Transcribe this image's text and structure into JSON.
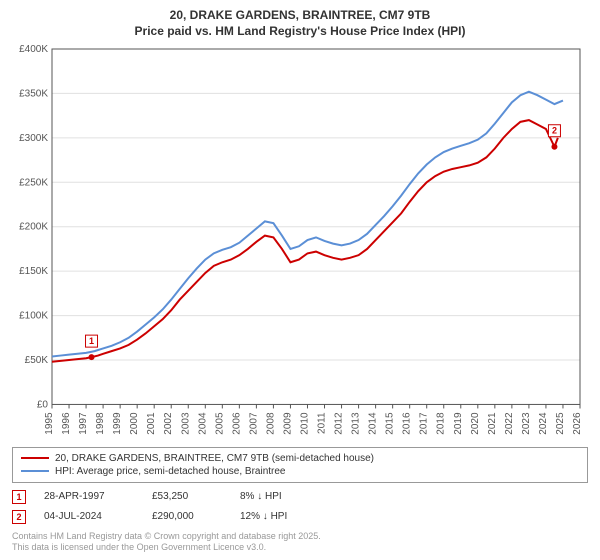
{
  "title": {
    "line1": "20, DRAKE GARDENS, BRAINTREE, CM7 9TB",
    "line2": "Price paid vs. HM Land Registry's House Price Index (HPI)",
    "fontsize": 12,
    "color": "#333333"
  },
  "chart": {
    "type": "line",
    "background_color": "#ffffff",
    "grid_color": "#e0e0e0",
    "axis_color": "#555555",
    "label_fontsize": 10,
    "x": {
      "min": 1995,
      "max": 2026,
      "ticks": [
        1995,
        1996,
        1997,
        1998,
        1999,
        2000,
        2001,
        2002,
        2003,
        2004,
        2005,
        2006,
        2007,
        2008,
        2009,
        2010,
        2011,
        2012,
        2013,
        2014,
        2015,
        2016,
        2017,
        2018,
        2019,
        2020,
        2021,
        2022,
        2023,
        2024,
        2025,
        2026
      ],
      "tick_rotation": -90
    },
    "y": {
      "min": 0,
      "max": 400000,
      "ticks": [
        0,
        50000,
        100000,
        150000,
        200000,
        250000,
        300000,
        350000,
        400000
      ],
      "tick_labels": [
        "£0",
        "£50K",
        "£100K",
        "£150K",
        "£200K",
        "£250K",
        "£300K",
        "£350K",
        "£400K"
      ]
    },
    "series": [
      {
        "id": "price_paid",
        "label": "20, DRAKE GARDENS, BRAINTREE, CM7 9TB (semi-detached house)",
        "color": "#cc0000",
        "line_width": 2,
        "points": [
          [
            1995.0,
            48000
          ],
          [
            1995.5,
            49000
          ],
          [
            1996.0,
            50000
          ],
          [
            1996.5,
            51000
          ],
          [
            1997.0,
            52000
          ],
          [
            1997.32,
            53250
          ],
          [
            1997.7,
            55000
          ],
          [
            1998.0,
            57000
          ],
          [
            1998.5,
            60000
          ],
          [
            1999.0,
            63000
          ],
          [
            1999.5,
            67000
          ],
          [
            2000.0,
            73000
          ],
          [
            2000.5,
            80000
          ],
          [
            2001.0,
            88000
          ],
          [
            2001.5,
            96000
          ],
          [
            2002.0,
            106000
          ],
          [
            2002.5,
            118000
          ],
          [
            2003.0,
            128000
          ],
          [
            2003.5,
            138000
          ],
          [
            2004.0,
            148000
          ],
          [
            2004.5,
            156000
          ],
          [
            2005.0,
            160000
          ],
          [
            2005.5,
            163000
          ],
          [
            2006.0,
            168000
          ],
          [
            2006.5,
            175000
          ],
          [
            2007.0,
            183000
          ],
          [
            2007.5,
            190000
          ],
          [
            2008.0,
            188000
          ],
          [
            2008.5,
            175000
          ],
          [
            2009.0,
            160000
          ],
          [
            2009.5,
            163000
          ],
          [
            2010.0,
            170000
          ],
          [
            2010.5,
            172000
          ],
          [
            2011.0,
            168000
          ],
          [
            2011.5,
            165000
          ],
          [
            2012.0,
            163000
          ],
          [
            2012.5,
            165000
          ],
          [
            2013.0,
            168000
          ],
          [
            2013.5,
            175000
          ],
          [
            2014.0,
            185000
          ],
          [
            2014.5,
            195000
          ],
          [
            2015.0,
            205000
          ],
          [
            2015.5,
            215000
          ],
          [
            2016.0,
            228000
          ],
          [
            2016.5,
            240000
          ],
          [
            2017.0,
            250000
          ],
          [
            2017.5,
            257000
          ],
          [
            2018.0,
            262000
          ],
          [
            2018.5,
            265000
          ],
          [
            2019.0,
            267000
          ],
          [
            2019.5,
            269000
          ],
          [
            2020.0,
            272000
          ],
          [
            2020.5,
            278000
          ],
          [
            2021.0,
            288000
          ],
          [
            2021.5,
            300000
          ],
          [
            2022.0,
            310000
          ],
          [
            2022.5,
            318000
          ],
          [
            2023.0,
            320000
          ],
          [
            2023.5,
            315000
          ],
          [
            2024.0,
            310000
          ],
          [
            2024.5,
            290000
          ],
          [
            2024.7,
            300000
          ]
        ]
      },
      {
        "id": "hpi",
        "label": "HPI: Average price, semi-detached house, Braintree",
        "color": "#5b8fd6",
        "line_width": 2,
        "points": [
          [
            1995.0,
            54000
          ],
          [
            1995.5,
            55000
          ],
          [
            1996.0,
            56000
          ],
          [
            1996.5,
            57000
          ],
          [
            1997.0,
            58000
          ],
          [
            1997.5,
            60000
          ],
          [
            1998.0,
            63000
          ],
          [
            1998.5,
            66000
          ],
          [
            1999.0,
            70000
          ],
          [
            1999.5,
            75000
          ],
          [
            2000.0,
            82000
          ],
          [
            2000.5,
            90000
          ],
          [
            2001.0,
            98000
          ],
          [
            2001.5,
            107000
          ],
          [
            2002.0,
            118000
          ],
          [
            2002.5,
            130000
          ],
          [
            2003.0,
            142000
          ],
          [
            2003.5,
            153000
          ],
          [
            2004.0,
            163000
          ],
          [
            2004.5,
            170000
          ],
          [
            2005.0,
            174000
          ],
          [
            2005.5,
            177000
          ],
          [
            2006.0,
            182000
          ],
          [
            2006.5,
            190000
          ],
          [
            2007.0,
            198000
          ],
          [
            2007.5,
            206000
          ],
          [
            2008.0,
            204000
          ],
          [
            2008.5,
            190000
          ],
          [
            2009.0,
            175000
          ],
          [
            2009.5,
            178000
          ],
          [
            2010.0,
            185000
          ],
          [
            2010.5,
            188000
          ],
          [
            2011.0,
            184000
          ],
          [
            2011.5,
            181000
          ],
          [
            2012.0,
            179000
          ],
          [
            2012.5,
            181000
          ],
          [
            2013.0,
            185000
          ],
          [
            2013.5,
            192000
          ],
          [
            2014.0,
            202000
          ],
          [
            2014.5,
            212000
          ],
          [
            2015.0,
            223000
          ],
          [
            2015.5,
            235000
          ],
          [
            2016.0,
            248000
          ],
          [
            2016.5,
            260000
          ],
          [
            2017.0,
            270000
          ],
          [
            2017.5,
            278000
          ],
          [
            2018.0,
            284000
          ],
          [
            2018.5,
            288000
          ],
          [
            2019.0,
            291000
          ],
          [
            2019.5,
            294000
          ],
          [
            2020.0,
            298000
          ],
          [
            2020.5,
            305000
          ],
          [
            2021.0,
            316000
          ],
          [
            2021.5,
            328000
          ],
          [
            2022.0,
            340000
          ],
          [
            2022.5,
            348000
          ],
          [
            2023.0,
            352000
          ],
          [
            2023.5,
            348000
          ],
          [
            2024.0,
            343000
          ],
          [
            2024.5,
            338000
          ],
          [
            2025.0,
            342000
          ]
        ]
      }
    ],
    "markers": [
      {
        "num": "1",
        "x": 1997.32,
        "y": 53250
      },
      {
        "num": "2",
        "x": 2024.5,
        "y": 290000
      }
    ]
  },
  "legend": {
    "border_color": "#999999",
    "fontsize": 10
  },
  "marker_table": {
    "rows": [
      {
        "num": "1",
        "date": "28-APR-1997",
        "price": "£53,250",
        "delta": "8% ↓ HPI"
      },
      {
        "num": "2",
        "date": "04-JUL-2024",
        "price": "£290,000",
        "delta": "12% ↓ HPI"
      }
    ]
  },
  "footer": {
    "line1": "Contains HM Land Registry data © Crown copyright and database right 2025.",
    "line2": "This data is licensed under the Open Government Licence v3.0.",
    "color": "#999999",
    "fontsize": 9
  }
}
